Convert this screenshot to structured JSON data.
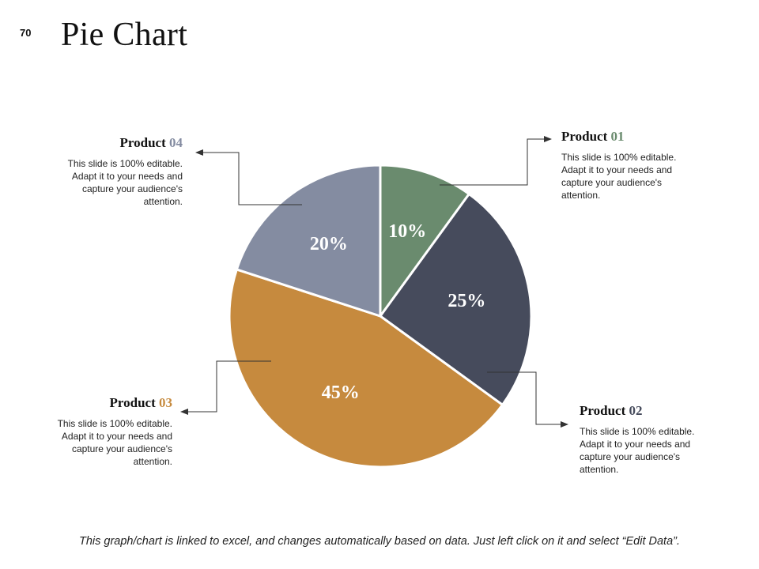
{
  "slide": {
    "number": "70",
    "title": "Pie Chart",
    "footer_note": "This graph/chart is linked to excel, and changes automatically based on data. Just left click on it and select “Edit Data”."
  },
  "chart_data": {
    "type": "pie",
    "title": "Pie Chart",
    "start_angle_deg": 0,
    "direction": "clockwise",
    "slices": [
      {
        "name": "Product 01",
        "value": 10,
        "label": "10%",
        "color": "#6a8b6e"
      },
      {
        "name": "Product 02",
        "value": 25,
        "label": "25%",
        "color": "#464b5c"
      },
      {
        "name": "Product 03",
        "value": 45,
        "label": "45%",
        "color": "#c68a3e"
      },
      {
        "name": "Product 04",
        "value": 20,
        "label": "20%",
        "color": "#848ca1"
      }
    ]
  },
  "products": [
    {
      "word": "Product",
      "num": "01",
      "num_color": "#6a8b6e",
      "desc": "This slide is 100% editable. Adapt it to your needs and capture your audience's attention."
    },
    {
      "word": "Product",
      "num": "02",
      "num_color": "#464b5c",
      "desc": "This slide is 100% editable. Adapt it to your needs and capture your audience's attention."
    },
    {
      "word": "Product",
      "num": "03",
      "num_color": "#c68a3e",
      "desc": "This slide is 100% editable. Adapt it to your needs and capture your audience's attention."
    },
    {
      "word": "Product",
      "num": "04",
      "num_color": "#848ca1",
      "desc": "This slide is 100% editable. Adapt it to your needs and capture your audience's attention."
    }
  ]
}
